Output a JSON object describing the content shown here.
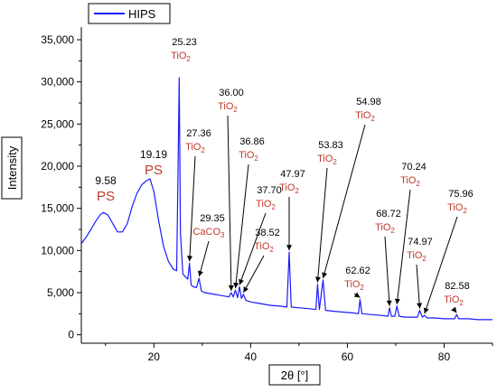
{
  "chart_data": {
    "type": "line",
    "xlabel": "2θ [°]",
    "ylabel": "Intensity",
    "xlim": [
      5,
      90
    ],
    "ylim": [
      -1000,
      36500
    ],
    "xticks": [
      20,
      40,
      60,
      80
    ],
    "yticks": [
      0,
      5000,
      10000,
      15000,
      20000,
      25000,
      30000,
      35000
    ],
    "ytick_labels": [
      "0",
      "5,000",
      "10,000",
      "15,000",
      "20,000",
      "25,000",
      "30,000",
      "35,000"
    ],
    "grid": false,
    "legend_position": "top-left",
    "series": [
      {
        "name": "HIPS",
        "color": "#1a1aff",
        "x": [
          5,
          6,
          7,
          8,
          9,
          9.58,
          10.5,
          11.5,
          12.5,
          13.5,
          14.5,
          15.5,
          16.5,
          17.5,
          18.5,
          19.19,
          20,
          21,
          22,
          23,
          24,
          24.7,
          25,
          25.23,
          25.5,
          26,
          26.5,
          27,
          27.36,
          27.7,
          28.2,
          28.8,
          29.35,
          29.8,
          30.5,
          31.5,
          32.5,
          33.5,
          34.5,
          35.5,
          36.0,
          36.4,
          36.86,
          37.3,
          37.7,
          38.1,
          38.52,
          39,
          40,
          42,
          44,
          46,
          47.5,
          47.97,
          48.4,
          50,
          52,
          53.5,
          53.83,
          54.2,
          54.98,
          55.5,
          57,
          59,
          61,
          62.3,
          62.62,
          63,
          65,
          67,
          68.4,
          68.72,
          69.1,
          69.8,
          70.24,
          70.7,
          72,
          74.5,
          74.97,
          75.5,
          75.96,
          76.5,
          78,
          80,
          82.2,
          82.58,
          83,
          85,
          87,
          90
        ],
        "y": [
          10800,
          11600,
          12500,
          13500,
          14300,
          14500,
          14200,
          13200,
          12200,
          12200,
          13200,
          15200,
          16800,
          17800,
          18300,
          18500,
          17000,
          13500,
          10500,
          8700,
          7800,
          7600,
          20000,
          30500,
          12000,
          7200,
          6900,
          6600,
          8500,
          5900,
          5700,
          5600,
          6700,
          5200,
          5000,
          4900,
          4800,
          4700,
          4600,
          4500,
          5000,
          4500,
          5300,
          4400,
          5700,
          4300,
          4800,
          4100,
          3900,
          3700,
          3500,
          3400,
          3300,
          9800,
          3300,
          3200,
          3100,
          3000,
          6000,
          3000,
          6500,
          2900,
          2800,
          2700,
          2600,
          2500,
          4200,
          2500,
          2400,
          2300,
          2200,
          3200,
          2200,
          2200,
          3400,
          2200,
          2100,
          2100,
          2900,
          2100,
          2300,
          2000,
          2000,
          1900,
          1900,
          2400,
          1900,
          1900,
          1800,
          1800
        ]
      }
    ],
    "annotations": [
      {
        "value": "25.23",
        "phase": "TiO",
        "sub": "2",
        "x": 25.23,
        "y": 30500
      },
      {
        "value": "27.36",
        "phase": "TiO",
        "sub": "2",
        "x": 27.36,
        "y": 8500
      },
      {
        "value": "29.35",
        "phase": "CaCO",
        "sub": "3",
        "x": 29.35,
        "y": 6700
      },
      {
        "value": "36.00",
        "phase": "TiO",
        "sub": "2",
        "x": 36.0,
        "y": 5000
      },
      {
        "value": "36.86",
        "phase": "TiO",
        "sub": "2",
        "x": 36.86,
        "y": 5300
      },
      {
        "value": "37.70",
        "phase": "TiO",
        "sub": "2",
        "x": 37.7,
        "y": 5700
      },
      {
        "value": "38.52",
        "phase": "TiO",
        "sub": "2",
        "x": 38.52,
        "y": 4800
      },
      {
        "value": "47.97",
        "phase": "TiO",
        "sub": "2",
        "x": 47.97,
        "y": 9800
      },
      {
        "value": "53.83",
        "phase": "TiO",
        "sub": "2",
        "x": 53.83,
        "y": 6000
      },
      {
        "value": "54.98",
        "phase": "TiO",
        "sub": "2",
        "x": 54.98,
        "y": 6500
      },
      {
        "value": "62.62",
        "phase": "TiO",
        "sub": "2",
        "x": 62.62,
        "y": 4200
      },
      {
        "value": "68.72",
        "phase": "TiO",
        "sub": "2",
        "x": 68.72,
        "y": 3200
      },
      {
        "value": "70.24",
        "phase": "TiO",
        "sub": "2",
        "x": 70.24,
        "y": 3400
      },
      {
        "value": "74.97",
        "phase": "TiO",
        "sub": "2",
        "x": 74.97,
        "y": 2900
      },
      {
        "value": "75.96",
        "phase": "TiO",
        "sub": "2",
        "x": 75.96,
        "y": 2300
      },
      {
        "value": "82.58",
        "phase": "TiO",
        "sub": "2",
        "x": 82.58,
        "y": 2400
      }
    ],
    "polymer_labels": [
      {
        "value": "9.58",
        "label": "PS",
        "x": 9.58
      },
      {
        "value": "19.19",
        "label": "PS",
        "x": 19.19
      }
    ]
  }
}
